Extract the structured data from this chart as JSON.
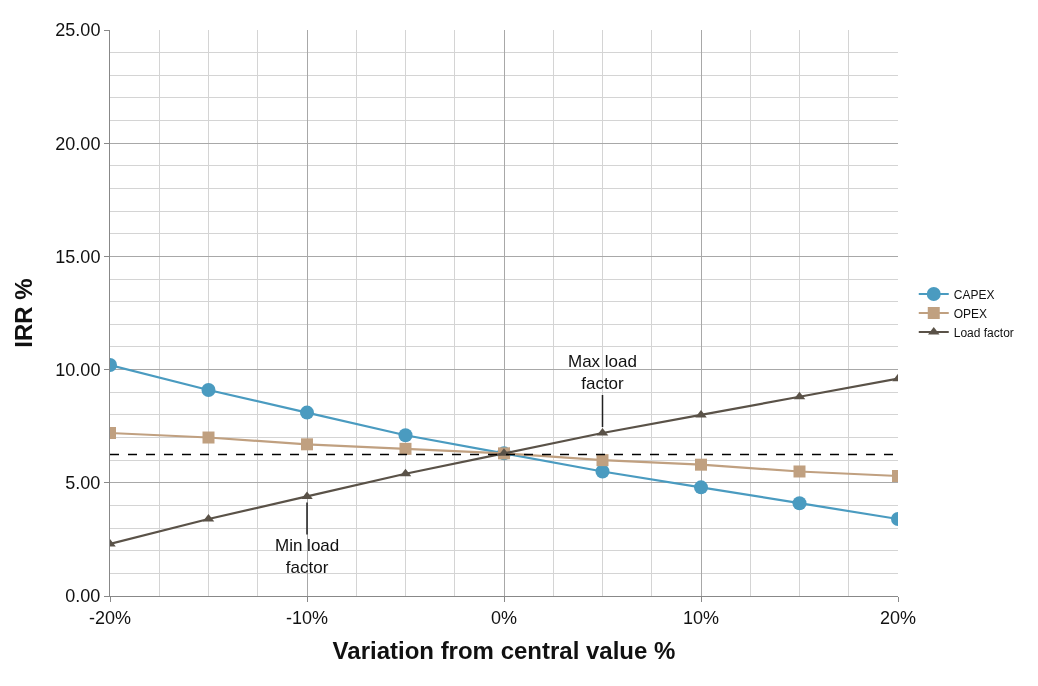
{
  "chart_data": {
    "type": "line",
    "xlabel": "Variation from central value %",
    "ylabel": "IRR %",
    "x": [
      -20,
      -15,
      -10,
      -5,
      0,
      5,
      10,
      15,
      20
    ],
    "series": [
      {
        "name": "CAPEX",
        "color": "#4a9bc0",
        "marker": "circle",
        "values": [
          10.2,
          9.1,
          8.1,
          7.1,
          6.3,
          5.5,
          4.8,
          4.1,
          3.4
        ]
      },
      {
        "name": "OPEX",
        "color": "#c0a080",
        "marker": "square",
        "values": [
          7.2,
          7.0,
          6.7,
          6.5,
          6.3,
          6.0,
          5.8,
          5.5,
          5.3
        ]
      },
      {
        "name": "Load factor",
        "color": "#5a5248",
        "marker": "triangle",
        "values": [
          2.3,
          3.4,
          4.4,
          5.4,
          6.3,
          7.2,
          8.0,
          8.8,
          9.6
        ]
      }
    ],
    "ref_lines": [
      {
        "axis": "y",
        "value": 6.25,
        "color": "#000000",
        "line_style": "dashed"
      }
    ],
    "annotations": [
      {
        "text": "Max load factor",
        "x": 5,
        "y": 7.2
      },
      {
        "text": "Min load factor",
        "x": -10,
        "y": 4.4
      }
    ],
    "xlim": [
      -20,
      20
    ],
    "xticks": [
      {
        "value": -20,
        "label": "-20%"
      },
      {
        "value": -10,
        "label": "-10%"
      },
      {
        "value": 0,
        "label": "0%"
      },
      {
        "value": 10,
        "label": "10%"
      },
      {
        "value": 20,
        "label": "20%"
      }
    ],
    "ylim": [
      0,
      25
    ],
    "yticks": [
      {
        "value": 0,
        "label": "0.00"
      },
      {
        "value": 5,
        "label": "5.00"
      },
      {
        "value": 10,
        "label": "10.00"
      },
      {
        "value": 15,
        "label": "15.00"
      },
      {
        "value": 20,
        "label": "20.00"
      },
      {
        "value": 25,
        "label": "25.00"
      }
    ],
    "grid": true,
    "legend": "right"
  }
}
